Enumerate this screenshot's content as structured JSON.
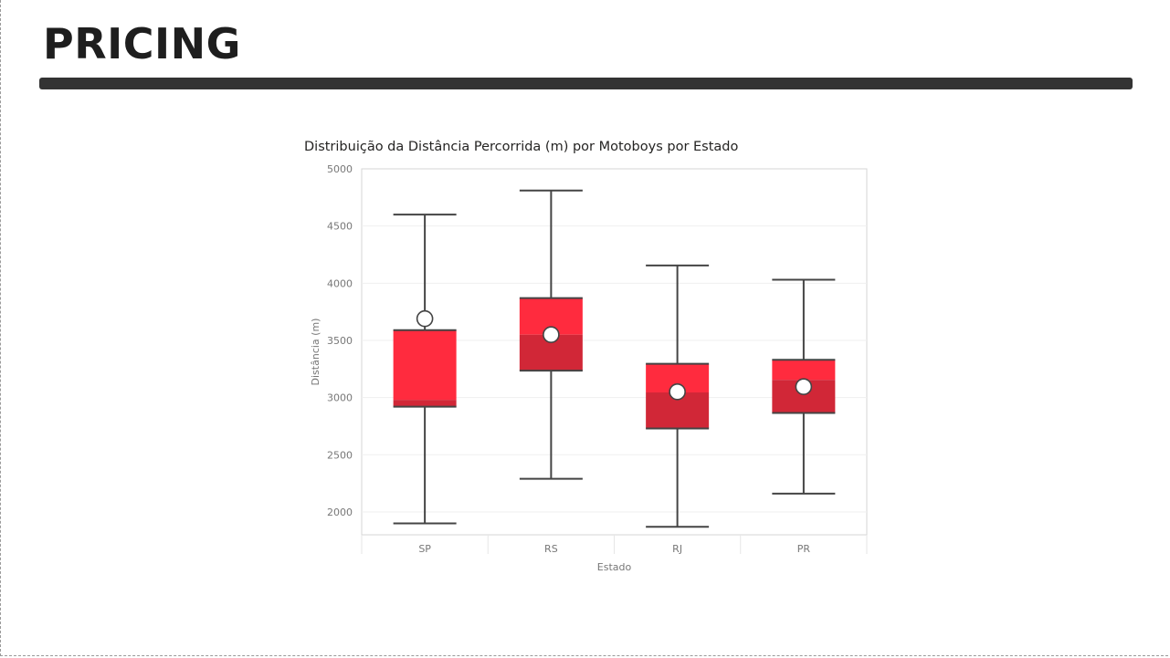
{
  "header": {
    "title": "PRICING"
  },
  "colors": {
    "box_upper": "#ff2b3e",
    "box_lower": "#d12737",
    "whisker": "#444444",
    "mean_marker_fill": "#ffffff",
    "title_bar": "#333333"
  },
  "chart_data": {
    "type": "boxplot",
    "title": "Distribuição da Distância Percorrida (m) por Motoboys por Estado",
    "xlabel": "Estado",
    "ylabel": "Distância (m)",
    "ylim": [
      1800,
      5000
    ],
    "yticks": [
      2000,
      2500,
      3000,
      3500,
      4000,
      4500,
      5000
    ],
    "grid": true,
    "categories": [
      "SP",
      "RS",
      "RJ",
      "PR"
    ],
    "boxes": [
      {
        "category": "SP",
        "min": 1900,
        "q1": 2920,
        "median": 2980,
        "q3": 3590,
        "max": 4600,
        "mean": 3690
      },
      {
        "category": "RS",
        "min": 2290,
        "q1": 3235,
        "median": 3550,
        "q3": 3870,
        "max": 4810,
        "mean": 3550
      },
      {
        "category": "RJ",
        "min": 1870,
        "q1": 2730,
        "median": 3045,
        "q3": 3295,
        "max": 4155,
        "mean": 3050
      },
      {
        "category": "PR",
        "min": 2160,
        "q1": 2865,
        "median": 3155,
        "q3": 3330,
        "max": 4030,
        "mean": 3095
      }
    ]
  }
}
